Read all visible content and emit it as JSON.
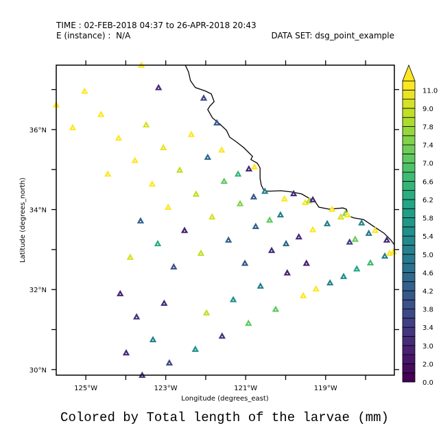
{
  "header": {
    "time_line": "TIME : 02-FEB-2018 04:37 to 26-APR-2018 20:43",
    "instance_line": "E (instance) :  N/A",
    "dataset_line": "DATA SET: dsg_point_example"
  },
  "caption": "Colored by Total length of the larvae (mm)",
  "chart_data": {
    "type": "scatter",
    "marker": "triangle",
    "xlabel": "Longitude (degrees_east)",
    "ylabel": "Latitude (degrees_north)",
    "xlim": [
      -125.74,
      -117.28
    ],
    "ylim": [
      29.86,
      37.61
    ],
    "x_ticks": [
      -125,
      -124,
      -123,
      -122,
      -121,
      -120,
      -119,
      -118
    ],
    "x_tick_labels": [
      {
        "value": -125,
        "label": "125°W"
      },
      {
        "value": -123,
        "label": "123°W"
      },
      {
        "value": -121,
        "label": "121°W"
      },
      {
        "value": -119,
        "label": "119°W"
      }
    ],
    "y_ticks": [
      30,
      31,
      32,
      33,
      34,
      35,
      36,
      37
    ],
    "y_tick_labels": [
      {
        "value": 36,
        "label": "36°N"
      },
      {
        "value": 34,
        "label": "34°N"
      },
      {
        "value": 32,
        "label": "32°N"
      },
      {
        "value": 30,
        "label": "30°N"
      }
    ],
    "colormap": "viridis",
    "colorbar": {
      "levels": [
        0,
        1,
        2,
        2.5,
        3,
        3.2,
        3.4,
        3.6,
        3.8,
        4.0,
        4.2,
        4.4,
        4.6,
        4.8,
        5.0,
        5.2,
        5.4,
        5.6,
        5.8,
        6.0,
        6.2,
        6.4,
        6.6,
        6.8,
        7.0,
        7.2,
        7.4,
        7.6,
        7.8,
        8.4,
        9.0,
        10,
        11,
        12
      ],
      "labels": [
        "0.0",
        "2.0",
        "3.0",
        "3.4",
        "3.8",
        "4.2",
        "4.6",
        "5.0",
        "5.4",
        "5.8",
        "6.2",
        "6.6",
        "7.0",
        "7.4",
        "7.8",
        "9.0",
        "11.0"
      ],
      "label_values": [
        0,
        2,
        3,
        3.4,
        3.8,
        4.2,
        4.6,
        5.0,
        5.4,
        5.8,
        6.2,
        6.6,
        7.0,
        7.4,
        7.8,
        9.0,
        11
      ],
      "overflow_arrow": true
    },
    "points": [
      [
        -123.61,
        37.61,
        11.5
      ],
      [
        -123.18,
        37.05,
        3.1
      ],
      [
        -125.03,
        36.96,
        11.5
      ],
      [
        -122.05,
        36.79,
        3.7
      ],
      [
        -125.74,
        36.62,
        11.5
      ],
      [
        -125.33,
        36.05,
        11.5
      ],
      [
        -124.62,
        36.38,
        11.5
      ],
      [
        -123.49,
        36.12,
        9.5
      ],
      [
        -121.72,
        36.17,
        4.1
      ],
      [
        -122.36,
        35.88,
        11.5
      ],
      [
        -124.18,
        35.79,
        11.5
      ],
      [
        -123.06,
        35.55,
        10
      ],
      [
        -121.6,
        35.49,
        11.5
      ],
      [
        -123.77,
        35.23,
        11.5
      ],
      [
        -121.95,
        35.31,
        4.5
      ],
      [
        -122.65,
        34.99,
        8.5
      ],
      [
        -124.45,
        34.89,
        11.5
      ],
      [
        -120.78,
        35.07,
        11.5
      ],
      [
        -120.92,
        35.02,
        3.1
      ],
      [
        -121.19,
        34.89,
        6.5
      ],
      [
        -121.54,
        34.71,
        7.1
      ],
      [
        -123.34,
        34.64,
        11.5
      ],
      [
        -120.52,
        34.46,
        5.0
      ],
      [
        -122.24,
        34.39,
        8.6
      ],
      [
        -120.03,
        34.27,
        11.5
      ],
      [
        -119.8,
        34.4,
        3.1
      ],
      [
        -120.8,
        34.32,
        4.1
      ],
      [
        -122.94,
        34.06,
        11.5
      ],
      [
        -121.14,
        34.15,
        7.5
      ],
      [
        -119.51,
        34.18,
        11.5
      ],
      [
        -119.41,
        34.22,
        7.9
      ],
      [
        -119.32,
        34.25,
        3.1
      ],
      [
        -118.84,
        34.01,
        11.5
      ],
      [
        -118.62,
        33.82,
        9.5
      ],
      [
        -118.5,
        33.91,
        7.5
      ],
      [
        -118.45,
        33.87,
        11.5
      ],
      [
        -123.63,
        33.72,
        4.3
      ],
      [
        -121.84,
        33.82,
        9.6
      ],
      [
        -120.13,
        33.87,
        5.1
      ],
      [
        -120.4,
        33.74,
        7.1
      ],
      [
        -120.75,
        33.58,
        4.3
      ],
      [
        -118.96,
        33.65,
        5.1
      ],
      [
        -119.32,
        33.5,
        11.5
      ],
      [
        -119.67,
        33.32,
        3.1
      ],
      [
        -119.99,
        33.15,
        4.5
      ],
      [
        -121.43,
        33.24,
        4.3
      ],
      [
        -122.53,
        33.48,
        2.5
      ],
      [
        -123.2,
        33.15,
        6.3
      ],
      [
        -118.1,
        33.67,
        5.3
      ],
      [
        -117.92,
        33.41,
        4.9
      ],
      [
        -117.76,
        33.48,
        11.5
      ],
      [
        -117.47,
        33.24,
        3.1
      ],
      [
        -118.26,
        33.26,
        7.3
      ],
      [
        -118.4,
        33.19,
        3.5
      ],
      [
        -117.52,
        32.84,
        5.1
      ],
      [
        -117.4,
        32.91,
        11.5
      ],
      [
        -117.3,
        32.95,
        11
      ],
      [
        -120.35,
        32.98,
        3.1
      ],
      [
        -121.02,
        32.66,
        4.1
      ],
      [
        -119.48,
        32.66,
        2.6
      ],
      [
        -119.96,
        32.42,
        2.6
      ],
      [
        -117.88,
        32.67,
        6.7
      ],
      [
        -118.22,
        32.52,
        6.1
      ],
      [
        -118.55,
        32.33,
        5.5
      ],
      [
        -118.89,
        32.17,
        5.1
      ],
      [
        -119.24,
        32.02,
        11
      ],
      [
        -119.56,
        31.85,
        11.5
      ],
      [
        -120.63,
        32.09,
        5.0
      ],
      [
        -121.31,
        31.75,
        5.5
      ],
      [
        -120.25,
        31.51,
        7.1
      ],
      [
        -120.93,
        31.16,
        7.1
      ],
      [
        -121.59,
        30.84,
        3.3
      ],
      [
        -123.89,
        32.81,
        9.5
      ],
      [
        -122.8,
        32.57,
        3.9
      ],
      [
        -124.14,
        31.9,
        2.6
      ],
      [
        -123.04,
        31.66,
        3.1
      ],
      [
        -122.12,
        32.91,
        8.5
      ],
      [
        -121.98,
        31.42,
        8.5
      ],
      [
        -123.73,
        31.32,
        3.3
      ],
      [
        -123.32,
        30.75,
        5.1
      ],
      [
        -122.26,
        30.51,
        5.5
      ],
      [
        -123.99,
        30.42,
        3.1
      ],
      [
        -122.91,
        30.17,
        3.7
      ],
      [
        -123.59,
        29.86,
        3.3
      ]
    ],
    "coastline": [
      [
        -122.51,
        37.61
      ],
      [
        -122.43,
        37.44
      ],
      [
        -122.38,
        37.22
      ],
      [
        -122.26,
        37.05
      ],
      [
        -122.0,
        36.96
      ],
      [
        -121.86,
        36.89
      ],
      [
        -121.79,
        36.7
      ],
      [
        -121.9,
        36.58
      ],
      [
        -121.95,
        36.5
      ],
      [
        -121.83,
        36.29
      ],
      [
        -121.66,
        36.15
      ],
      [
        -121.48,
        35.98
      ],
      [
        -121.4,
        35.81
      ],
      [
        -121.23,
        35.69
      ],
      [
        -121.05,
        35.55
      ],
      [
        -120.93,
        35.43
      ],
      [
        -120.83,
        35.33
      ],
      [
        -120.87,
        35.25
      ],
      [
        -120.71,
        35.16
      ],
      [
        -120.64,
        35.04
      ],
      [
        -120.64,
        34.78
      ],
      [
        -120.61,
        34.61
      ],
      [
        -120.54,
        34.47
      ],
      [
        -120.42,
        34.46
      ],
      [
        -120.11,
        34.47
      ],
      [
        -119.85,
        34.44
      ],
      [
        -119.6,
        34.39
      ],
      [
        -119.39,
        34.27
      ],
      [
        -119.25,
        34.18
      ],
      [
        -119.17,
        34.06
      ],
      [
        -118.91,
        34.01
      ],
      [
        -118.57,
        34.04
      ],
      [
        -118.48,
        34.01
      ],
      [
        -118.43,
        33.84
      ],
      [
        -118.29,
        33.79
      ],
      [
        -118.05,
        33.75
      ],
      [
        -117.8,
        33.58
      ],
      [
        -117.54,
        33.41
      ],
      [
        -117.37,
        33.24
      ],
      [
        -117.28,
        33.12
      ]
    ]
  }
}
